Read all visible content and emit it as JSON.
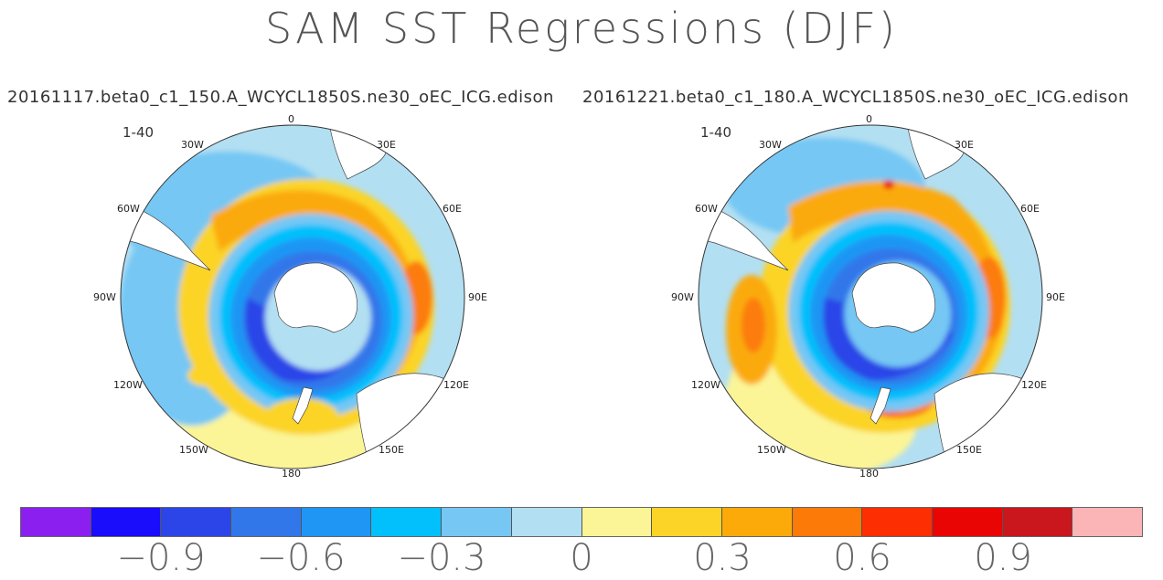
{
  "title": "SAM SST Regressions (DJF)",
  "panels": [
    {
      "subtitle": "20161117.beta0_c1_150.A_WCYCL1850S.ne30_oEC_ICG.edison",
      "range_label": "1-40",
      "longitude_labels": [
        "0",
        "30E",
        "60E",
        "90E",
        "120E",
        "150E",
        "180",
        "150W",
        "120W",
        "90W",
        "60W",
        "30W"
      ]
    },
    {
      "subtitle": "20161221.beta0_c1_180.A_WCYCL1850S.ne30_oEC_ICG.edison",
      "range_label": "1-40",
      "longitude_labels": [
        "0",
        "30E",
        "60E",
        "90E",
        "120E",
        "150E",
        "180",
        "150W",
        "120W",
        "90W",
        "60W",
        "30W"
      ]
    }
  ],
  "colorbar": {
    "colors": [
      "#8a1ff0",
      "#1a0dfb",
      "#2c45e8",
      "#3177ea",
      "#1f96f4",
      "#02c0fc",
      "#76c7f4",
      "#b3dff2",
      "#fbf597",
      "#fbd427",
      "#fbaa09",
      "#fc7b08",
      "#fc2e02",
      "#e80504",
      "#c9171d",
      "#fcb5b7"
    ],
    "tick_labels": [
      "−0.9",
      "−0.6",
      "−0.3",
      "0",
      "0.3",
      "0.6",
      "0.9"
    ]
  }
}
